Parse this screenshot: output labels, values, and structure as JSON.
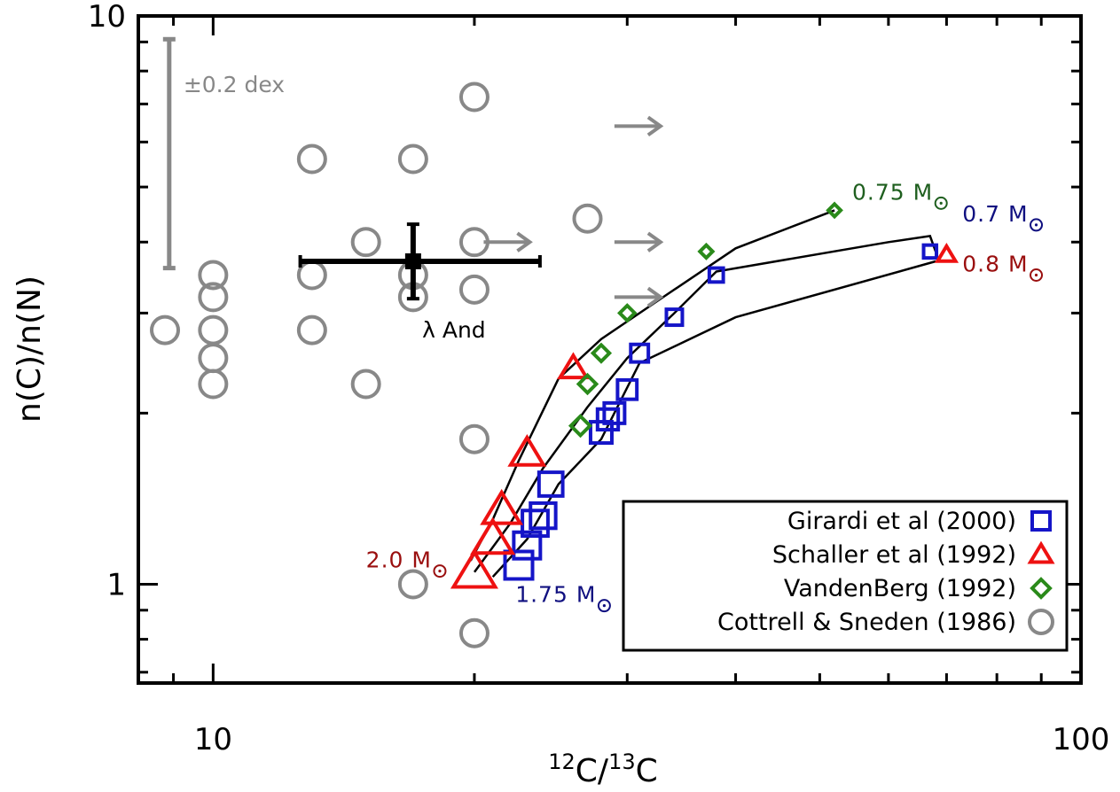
{
  "chart_data": {
    "type": "scatter",
    "xlabel_parts": {
      "sup1": "12",
      "c1": "C",
      "slash": "/",
      "sup2": "13",
      "c2": "C"
    },
    "ylabel": "n(C)/n(N)",
    "xscale": "log",
    "yscale": "log",
    "xlim": [
      8.2,
      100
    ],
    "ylim": [
      0.67,
      10
    ],
    "x_tick_labels": [
      {
        "value": 10,
        "label": "10"
      },
      {
        "value": 100,
        "label": "100"
      }
    ],
    "y_tick_labels": [
      {
        "value": 1,
        "label": "1"
      },
      {
        "value": 10,
        "label": "10"
      }
    ],
    "colors": {
      "girardi": "#1515c8",
      "schaller": "#ee1111",
      "vandenberg": "#2a8a1a",
      "cottrell": "#888888",
      "darkred": "#9a0f0f",
      "darkblue": "#101080",
      "darkgreen": "#1f5f1f"
    },
    "legend": {
      "position": "bottom-right",
      "entries": [
        {
          "label": "Girardi et al (2000)",
          "marker": "square",
          "series": "girardi"
        },
        {
          "label": "Schaller et al (1992)",
          "marker": "triangle",
          "series": "schaller"
        },
        {
          "label": "VandenBerg (1992)",
          "marker": "diamond",
          "series": "vandenberg"
        },
        {
          "label": "Cottrell & Sneden (1986)",
          "marker": "circle",
          "series": "cottrell"
        }
      ]
    },
    "series": [
      {
        "name": "Cottrell & Sneden (1986)",
        "key": "cottrell",
        "marker": "circle",
        "points": [
          [
            8.8,
            2.8
          ],
          [
            10,
            3.5
          ],
          [
            10,
            3.2
          ],
          [
            10,
            2.8
          ],
          [
            10,
            2.5
          ],
          [
            10,
            2.25
          ],
          [
            13,
            5.6
          ],
          [
            13,
            3.5
          ],
          [
            13,
            2.8
          ],
          [
            15,
            4.0
          ],
          [
            15,
            2.25
          ],
          [
            17,
            5.6
          ],
          [
            17,
            3.5
          ],
          [
            17,
            3.2
          ],
          [
            17,
            1.0
          ],
          [
            20,
            7.2
          ],
          [
            20,
            4.0
          ],
          [
            20,
            3.3
          ],
          [
            20,
            1.8
          ],
          [
            20,
            0.82
          ],
          [
            27,
            4.4
          ]
        ]
      },
      {
        "name": "Girardi et al (2000)",
        "key": "girardi",
        "marker": "square",
        "points": [
          [
            22.5,
            1.08
          ],
          [
            23,
            1.17
          ],
          [
            23.5,
            1.28
          ],
          [
            24,
            1.32
          ],
          [
            24.5,
            1.5
          ],
          [
            28,
            1.85
          ],
          [
            28.5,
            1.95
          ],
          [
            29,
            2.0
          ],
          [
            30,
            2.2
          ],
          [
            31,
            2.55
          ],
          [
            34,
            2.95
          ],
          [
            38,
            3.5
          ],
          [
            67,
            3.85
          ]
        ]
      },
      {
        "name": "Schaller et al (1992)",
        "key": "schaller",
        "marker": "triangle",
        "points": [
          [
            20,
            1.05
          ],
          [
            21,
            1.2
          ],
          [
            21.5,
            1.35
          ],
          [
            23,
            1.7
          ],
          [
            26,
            2.4
          ],
          [
            70,
            3.8
          ]
        ]
      },
      {
        "name": "VandenBerg (1992)",
        "key": "vandenberg",
        "marker": "diamond",
        "points": [
          [
            26.5,
            1.9
          ],
          [
            27,
            2.25
          ],
          [
            28,
            2.55
          ],
          [
            30,
            3.0
          ],
          [
            37,
            3.85
          ],
          [
            52,
            4.55
          ]
        ]
      }
    ],
    "tracks": [
      [
        [
          19.8,
          1.1
        ],
        [
          21,
          1.3
        ],
        [
          22.5,
          1.65
        ],
        [
          25,
          2.3
        ],
        [
          28,
          2.7
        ],
        [
          33,
          3.2
        ],
        [
          40,
          3.9
        ],
        [
          52,
          4.55
        ]
      ],
      [
        [
          20,
          1.05
        ],
        [
          22,
          1.28
        ],
        [
          24,
          1.6
        ],
        [
          27,
          2.05
        ],
        [
          30,
          2.5
        ],
        [
          34,
          3.0
        ],
        [
          38,
          3.55
        ],
        [
          60,
          4.0
        ],
        [
          67,
          4.1
        ],
        [
          68,
          3.85
        ]
      ],
      [
        [
          21,
          1.03
        ],
        [
          23,
          1.2
        ],
        [
          25,
          1.5
        ],
        [
          28,
          1.8
        ],
        [
          31,
          2.45
        ],
        [
          40,
          2.95
        ],
        [
          68,
          3.7
        ]
      ]
    ],
    "lower_limits": [
      {
        "x": 20.5,
        "y": 4.0
      },
      {
        "x": 29,
        "y": 6.4
      },
      {
        "x": 29,
        "y": 4.0
      },
      {
        "x": 29,
        "y": 3.2
      }
    ],
    "lambda_and": {
      "label": "λ And",
      "x": 17,
      "y": 3.7,
      "x_err": [
        12.6,
        23.8
      ],
      "y_err": [
        3.18,
        4.3
      ]
    },
    "error_bar": {
      "label": "±0.2 dex",
      "x": 8.9,
      "y_low": 3.6,
      "y_high": 9.1
    },
    "annotations": [
      {
        "text": "0.75 M",
        "x": 54.5,
        "y": 4.75,
        "color": "darkgreen"
      },
      {
        "text": "0.7 M",
        "x": 73,
        "y": 4.35,
        "color": "darkblue"
      },
      {
        "text": "0.8 M",
        "x": 73,
        "y": 3.55,
        "color": "darkred"
      },
      {
        "text": "2.0 M",
        "x": 15,
        "y": 1.07,
        "color": "darkred"
      },
      {
        "text": "1.75 M",
        "x": 22.3,
        "y": 0.93,
        "color": "darkblue"
      }
    ]
  }
}
